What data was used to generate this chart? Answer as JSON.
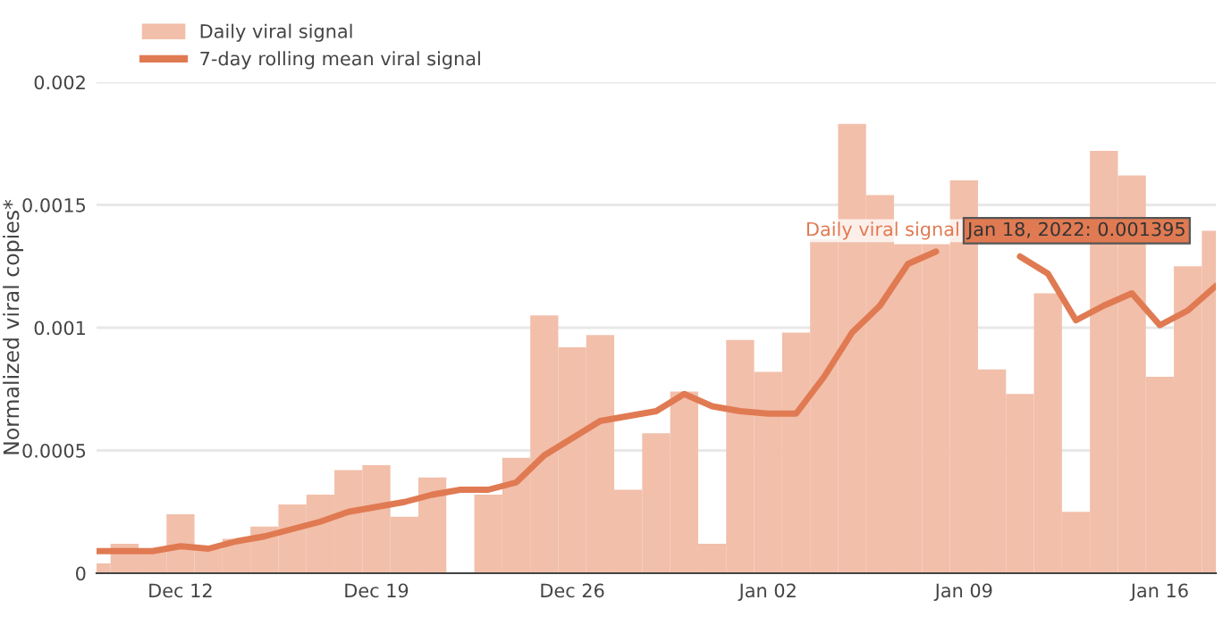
{
  "chart_data": {
    "type": "bar",
    "ylabel": "Normalized viral copies*",
    "x": [
      "2021-12-09",
      "2021-12-10",
      "2021-12-11",
      "2021-12-12",
      "2021-12-13",
      "2021-12-14",
      "2021-12-15",
      "2021-12-16",
      "2021-12-17",
      "2021-12-18",
      "2021-12-19",
      "2021-12-20",
      "2021-12-21",
      "2021-12-22",
      "2021-12-23",
      "2021-12-24",
      "2021-12-25",
      "2021-12-26",
      "2021-12-27",
      "2021-12-28",
      "2021-12-29",
      "2021-12-30",
      "2021-12-31",
      "2022-01-01",
      "2022-01-02",
      "2022-01-03",
      "2022-01-04",
      "2022-01-05",
      "2022-01-06",
      "2022-01-07",
      "2022-01-08",
      "2022-01-09",
      "2022-01-10",
      "2022-01-11",
      "2022-01-12",
      "2022-01-13",
      "2022-01-14",
      "2022-01-15",
      "2022-01-16",
      "2022-01-17",
      "2022-01-18"
    ],
    "series": [
      {
        "name": "Daily viral signal",
        "color": "#f2bfaa",
        "values": [
          4e-05,
          0.00012,
          9e-05,
          0.00024,
          0.0001,
          0.00014,
          0.00019,
          0.00028,
          0.00032,
          0.00042,
          0.00044,
          0.00023,
          0.00039,
          null,
          0.00032,
          0.00047,
          0.00105,
          0.00092,
          0.00097,
          0.00034,
          0.00057,
          0.00074,
          0.00012,
          0.00095,
          0.00082,
          0.00098,
          0.00136,
          0.00183,
          0.00154,
          0.00134,
          0.00134,
          0.0016,
          0.00083,
          0.00073,
          0.00114,
          0.00025,
          0.00172,
          0.00162,
          0.0008,
          0.00125,
          0.001395
        ]
      },
      {
        "name": "7-day rolling mean viral signal",
        "type": "line",
        "color": "#e07a52",
        "values": [
          9e-05,
          9e-05,
          9e-05,
          0.00011,
          0.0001,
          0.00013,
          0.00015,
          0.00018,
          0.00021,
          0.00025,
          0.00027,
          0.00029,
          0.00032,
          0.00034,
          0.00034,
          0.00037,
          0.00048,
          0.00055,
          0.00062,
          0.00064,
          0.00066,
          0.00073,
          0.00068,
          0.00066,
          0.00065,
          0.00065,
          0.0008,
          0.00098,
          0.00109,
          0.00126,
          0.00131,
          null,
          null,
          0.00129,
          0.00122,
          0.00103,
          0.00109,
          0.00114,
          0.00101,
          0.00107,
          0.00117
        ]
      }
    ],
    "xlim": [
      "2021-12-09",
      "2022-01-18"
    ],
    "xticks": [
      {
        "value": "2021-12-12",
        "label": "Dec 12"
      },
      {
        "value": "2021-12-19",
        "label": "Dec 19"
      },
      {
        "value": "2021-12-26",
        "label": "Dec 26"
      },
      {
        "value": "2022-01-02",
        "label": "Jan 02"
      },
      {
        "value": "2022-01-09",
        "label": "Jan 09"
      },
      {
        "value": "2022-01-16",
        "label": "Jan 16"
      }
    ],
    "ylim": [
      0,
      0.002
    ],
    "yticks": [
      0,
      0.0005,
      0.001,
      0.0015,
      0.002
    ],
    "grid": "y",
    "legend": "top left",
    "annotations": [
      {
        "text": "Jan 18, 2022: 0.001395",
        "x": "2022-01-18",
        "y": 0.001395
      },
      "Daily viral signal"
    ]
  }
}
